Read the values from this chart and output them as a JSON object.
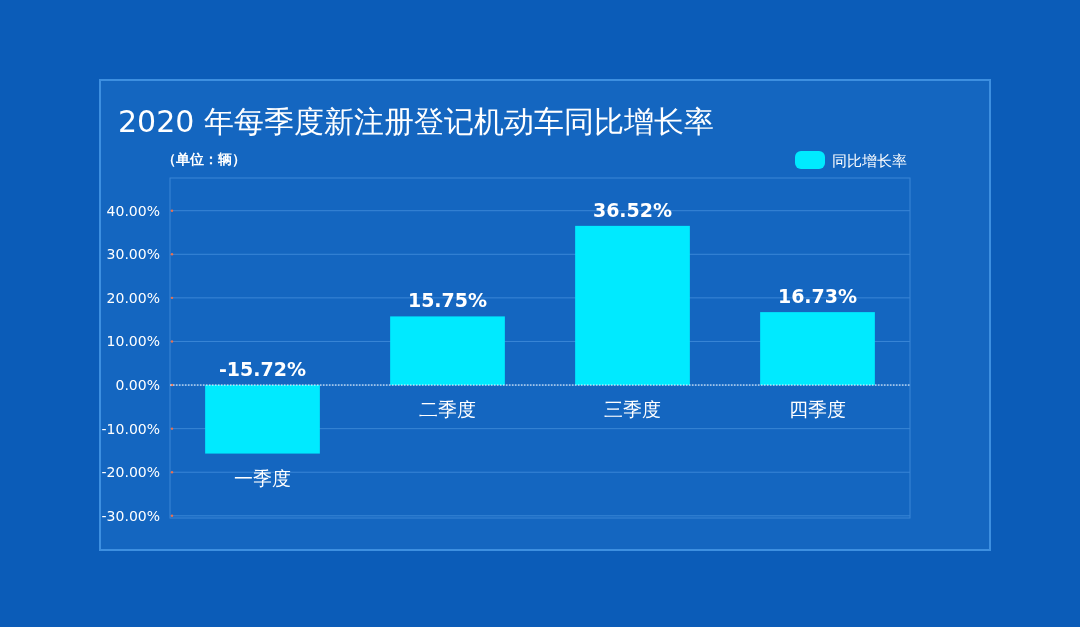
{
  "chart_data": {
    "type": "bar",
    "title": "2020 年每季度新注册登记机动车同比增长率",
    "ylabel": "（单位：辆）",
    "categories": [
      "一季度",
      "二季度",
      "三季度",
      "四季度"
    ],
    "series": [
      {
        "name": "同比增长率",
        "color": "#00eaff",
        "values": [
          -15.72,
          15.75,
          36.52,
          16.73
        ],
        "value_labels": [
          "-15.72%",
          "15.75%",
          "36.52%",
          "16.73%"
        ]
      }
    ],
    "ylim": [
      -30.5,
      47.5
    ],
    "yticks": [
      {
        "value": -30,
        "label": "-30.00%"
      },
      {
        "value": -20,
        "label": "-20.00%"
      },
      {
        "value": -10,
        "label": "-10.00%"
      },
      {
        "value": 0,
        "label": "0.00%"
      },
      {
        "value": 10,
        "label": "10.00%"
      },
      {
        "value": 20,
        "label": "20.00%"
      },
      {
        "value": 30,
        "label": "30.00%"
      },
      {
        "value": 40,
        "label": "40.00%"
      }
    ],
    "ref_lines": [
      {
        "axis": "y",
        "value": 0,
        "color": "#ffffff",
        "line_style": "dotted"
      }
    ],
    "grid": "y",
    "legend": "top right"
  }
}
